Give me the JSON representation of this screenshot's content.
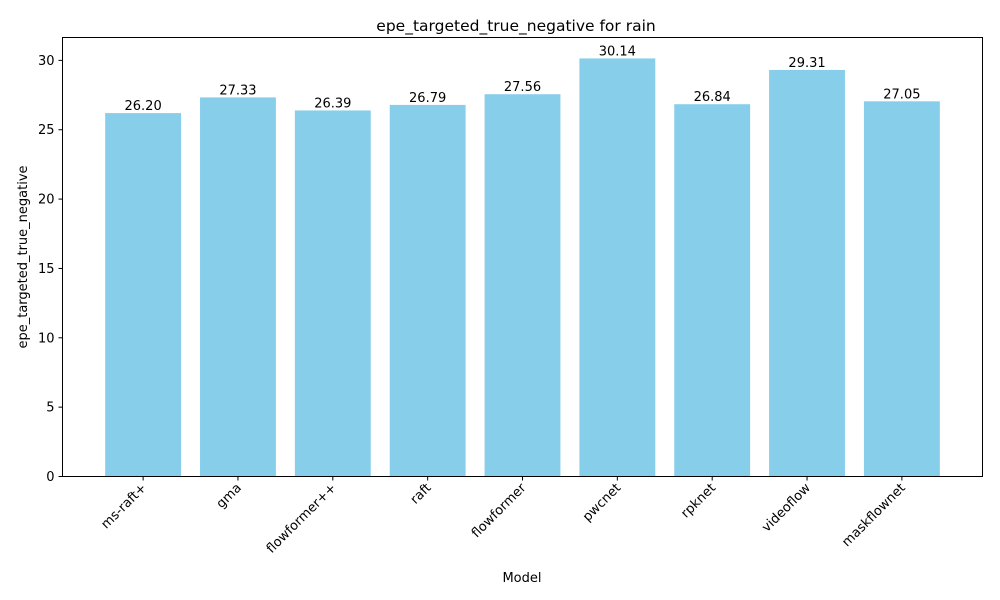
{
  "chart_data": {
    "type": "bar",
    "title": "epe_targeted_true_negative for rain",
    "xlabel": "Model",
    "ylabel": "epe_targeted_true_negative",
    "categories": [
      "ms-raft+",
      "gma",
      "flowformer++",
      "raft",
      "flowformer",
      "pwcnet",
      "rpknet",
      "videoflow",
      "maskflownet"
    ],
    "values": [
      26.2,
      27.33,
      26.39,
      26.79,
      27.56,
      30.14,
      26.84,
      29.31,
      27.05
    ],
    "data_labels": [
      "26.20",
      "27.33",
      "26.39",
      "26.79",
      "27.56",
      "30.14",
      "26.84",
      "29.31",
      "27.05"
    ],
    "yticks": [
      0,
      5,
      10,
      15,
      20,
      25,
      30
    ],
    "ylim": [
      0,
      31.65
    ],
    "bar_color": "#87ceeb",
    "grid": false,
    "legend": "none",
    "xtick_rotation": 45
  }
}
